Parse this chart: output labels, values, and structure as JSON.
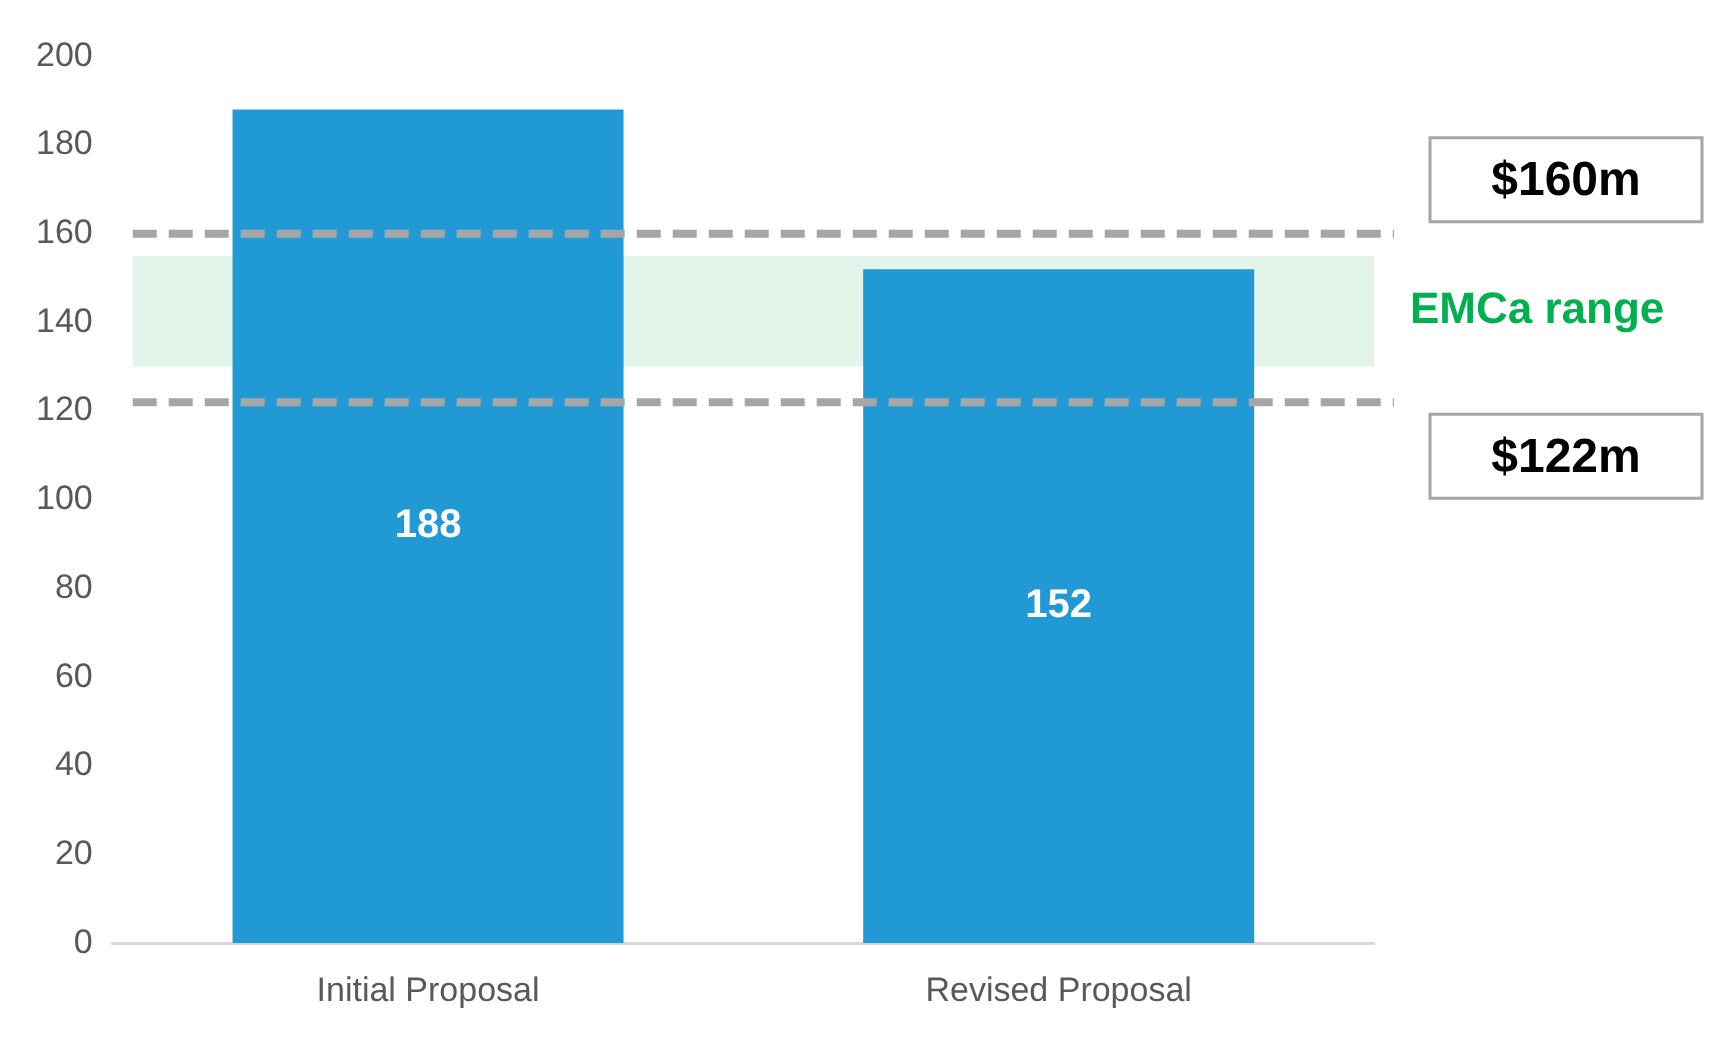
{
  "chart_data": {
    "type": "bar",
    "categories": [
      "Initial Proposal",
      "Revised Proposal"
    ],
    "values": [
      188,
      152
    ],
    "color": "#2199d5",
    "ylim": [
      0,
      200
    ],
    "yticks": [
      0,
      20,
      40,
      60,
      80,
      100,
      120,
      140,
      160,
      180,
      200
    ],
    "grid": false,
    "legend": false,
    "data_labels": true,
    "ref_lines": [
      {
        "axis": "y",
        "value": 160,
        "label": "$160m",
        "color": "#a6a6a6",
        "line_style": "dashed"
      },
      {
        "axis": "y",
        "value": 122,
        "label": "$122m",
        "color": "#a6a6a6",
        "line_style": "dashed"
      }
    ],
    "bands": [
      {
        "axis": "y",
        "from": 130,
        "to": 155,
        "label": "EMCa range",
        "color": "#e3f5ea"
      }
    ]
  }
}
